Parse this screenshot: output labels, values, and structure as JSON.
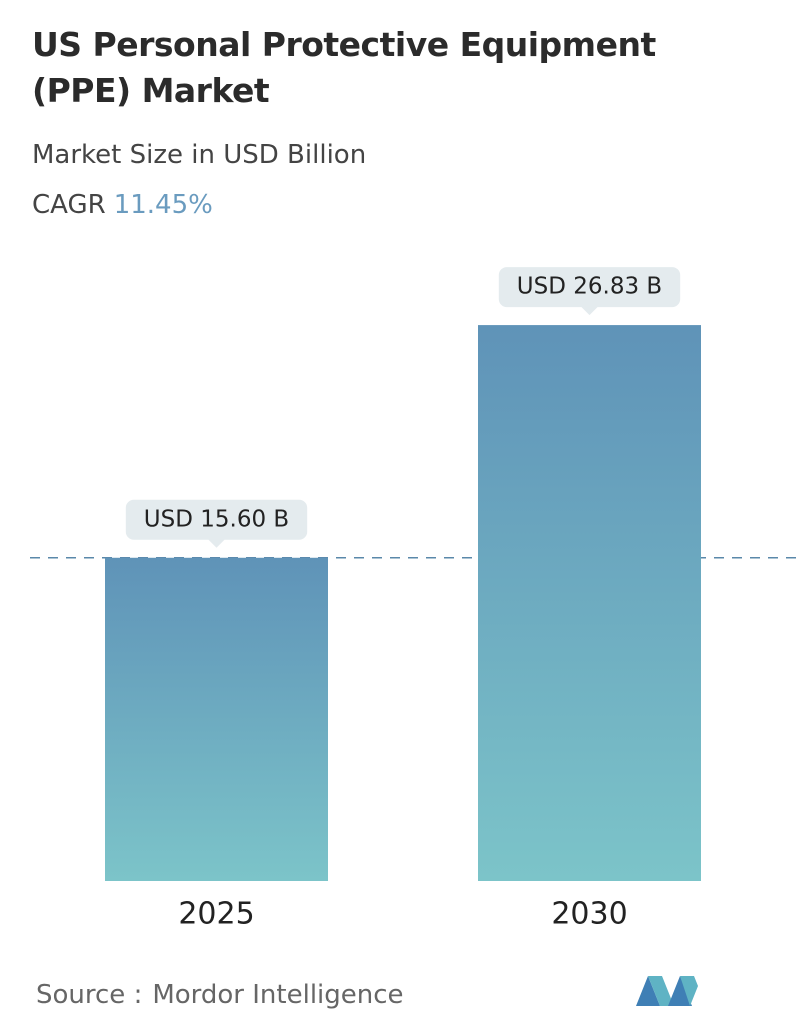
{
  "chart_data": {
    "type": "bar",
    "title": "US Personal Protective Equipment (PPE) Market",
    "subtitle": "Market Size in USD Billion",
    "cagr_label": "CAGR",
    "cagr_value": "11.45%",
    "categories": [
      "2025",
      "2030"
    ],
    "values": [
      15.6,
      26.83
    ],
    "value_labels": [
      "USD 15.60 B",
      "USD 26.83 B"
    ],
    "colors": [
      "#5f93b8",
      "#7cc4c9"
    ],
    "source_label": "Source :",
    "source": "Mordor Intelligence"
  }
}
